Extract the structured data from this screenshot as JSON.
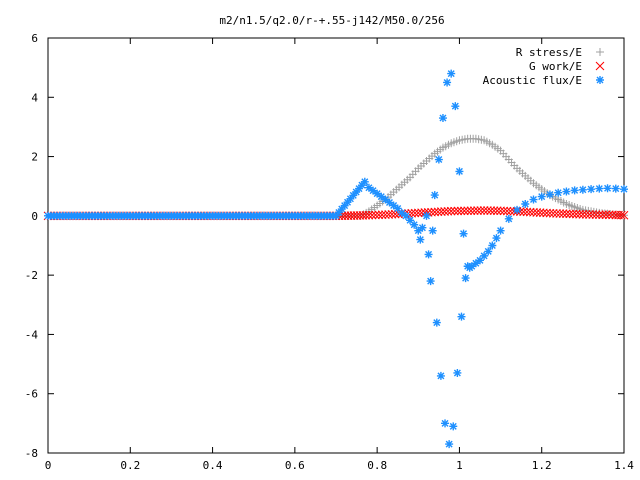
{
  "chart_data": {
    "type": "scatter",
    "title": "m2/n1.5/q2.0/r-+.55-j142/M50.0/256",
    "xlabel": "",
    "ylabel": "",
    "xlim": [
      0,
      1.4
    ],
    "ylim": [
      -8,
      6
    ],
    "x_ticks": [
      "0",
      "0.2",
      "0.4",
      "0.6",
      "0.8",
      "1",
      "1.2",
      "1.4"
    ],
    "y_ticks": [
      "6",
      "4",
      "2",
      "0",
      "-2",
      "-4",
      "-6",
      "-8"
    ],
    "grid": false,
    "legend_position": "top-right",
    "series": [
      {
        "name": "R stress/E",
        "color": "#a0a0a0",
        "marker": "plus",
        "x": [
          0.0,
          0.1,
          0.2,
          0.3,
          0.4,
          0.5,
          0.6,
          0.7,
          0.76,
          0.78,
          0.8,
          0.82,
          0.84,
          0.86,
          0.88,
          0.9,
          0.92,
          0.94,
          0.96,
          0.98,
          1.0,
          1.02,
          1.04,
          1.06,
          1.08,
          1.1,
          1.12,
          1.14,
          1.16,
          1.18,
          1.2,
          1.22,
          1.24,
          1.26,
          1.28,
          1.3,
          1.32,
          1.34,
          1.36,
          1.38,
          1.4
        ],
        "y": [
          0,
          0,
          0,
          0,
          0,
          0,
          0,
          0,
          0,
          0.15,
          0.35,
          0.55,
          0.8,
          1.05,
          1.3,
          1.6,
          1.85,
          2.1,
          2.3,
          2.45,
          2.55,
          2.6,
          2.6,
          2.55,
          2.4,
          2.2,
          1.9,
          1.6,
          1.35,
          1.1,
          0.9,
          0.7,
          0.55,
          0.4,
          0.3,
          0.2,
          0.15,
          0.1,
          0.07,
          0.04,
          0.02
        ]
      },
      {
        "name": "G work/E",
        "color": "#ff0000",
        "marker": "cross",
        "x": [
          0.0,
          0.1,
          0.2,
          0.3,
          0.4,
          0.5,
          0.6,
          0.7,
          0.78,
          0.82,
          0.86,
          0.9,
          0.94,
          0.98,
          1.02,
          1.06,
          1.1,
          1.14,
          1.18,
          1.22,
          1.26,
          1.3,
          1.34,
          1.38,
          1.4
        ],
        "y": [
          0,
          0,
          0,
          0,
          0,
          0,
          0,
          0,
          0.02,
          0.04,
          0.07,
          0.1,
          0.13,
          0.16,
          0.17,
          0.18,
          0.17,
          0.15,
          0.12,
          0.09,
          0.07,
          0.05,
          0.04,
          0.03,
          0.02
        ]
      },
      {
        "name": "Acoustic flux/E",
        "color": "#1e90ff",
        "marker": "star",
        "x": [
          0.0,
          0.1,
          0.2,
          0.3,
          0.4,
          0.5,
          0.6,
          0.7,
          0.77,
          0.78,
          0.79,
          0.8,
          0.81,
          0.82,
          0.83,
          0.84,
          0.85,
          0.86,
          0.87,
          0.88,
          0.89,
          0.9,
          0.905,
          0.91,
          0.92,
          0.925,
          0.93,
          0.935,
          0.94,
          0.945,
          0.95,
          0.955,
          0.96,
          0.965,
          0.97,
          0.975,
          0.98,
          0.985,
          0.99,
          0.995,
          1.0,
          1.005,
          1.01,
          1.015,
          1.02,
          1.025,
          1.03,
          1.04,
          1.05,
          1.06,
          1.07,
          1.08,
          1.09,
          1.1,
          1.12,
          1.14,
          1.16,
          1.18,
          1.2,
          1.22,
          1.24,
          1.26,
          1.28,
          1.3,
          1.32,
          1.34,
          1.36,
          1.38,
          1.4
        ],
        "y": [
          0,
          0,
          0,
          0,
          0,
          0,
          0,
          0,
          1.15,
          0.95,
          0.85,
          0.75,
          0.65,
          0.55,
          0.45,
          0.35,
          0.25,
          0.1,
          0.0,
          -0.15,
          -0.3,
          -0.5,
          -0.8,
          -0.4,
          0.0,
          -1.3,
          -2.2,
          -0.5,
          0.7,
          -3.6,
          1.9,
          -5.4,
          3.3,
          -7.0,
          4.5,
          -7.7,
          4.8,
          -7.1,
          3.7,
          -5.3,
          1.5,
          -3.4,
          -0.6,
          -2.1,
          -1.7,
          -1.75,
          -1.7,
          -1.6,
          -1.5,
          -1.35,
          -1.2,
          -1.0,
          -0.75,
          -0.5,
          -0.1,
          0.2,
          0.4,
          0.55,
          0.65,
          0.72,
          0.78,
          0.82,
          0.86,
          0.88,
          0.9,
          0.92,
          0.93,
          0.92,
          0.9
        ]
      }
    ]
  }
}
